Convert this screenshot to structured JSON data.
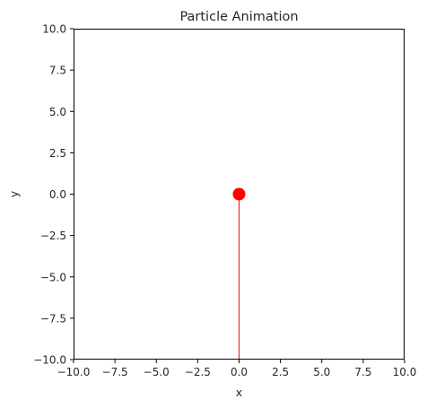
{
  "chart_data": {
    "type": "scatter",
    "title": "Particle Animation",
    "xlabel": "x",
    "ylabel": "y",
    "xlim": [
      -10,
      10
    ],
    "ylim": [
      -10,
      10
    ],
    "grid": false,
    "xticks": [
      -10.0,
      -7.5,
      -5.0,
      -2.5,
      0.0,
      2.5,
      5.0,
      7.5,
      10.0
    ],
    "yticks": [
      -10.0,
      -7.5,
      -5.0,
      -2.5,
      0.0,
      2.5,
      5.0,
      7.5,
      10.0
    ],
    "xtick_labels": [
      "−10.0",
      "−7.5",
      "−5.0",
      "−2.5",
      "0.0",
      "2.5",
      "5.0",
      "7.5",
      "10.0"
    ],
    "ytick_labels": [
      "−10.0",
      "−7.5",
      "−5.0",
      "−2.5",
      "0.0",
      "2.5",
      "5.0",
      "7.5",
      "10.0"
    ],
    "particle": {
      "x": 0.0,
      "y": 0.0,
      "color": "#ff0000"
    },
    "trail": {
      "color": "#ff0000",
      "points": [
        [
          0.0,
          -10.0
        ],
        [
          0.0,
          0.0
        ]
      ]
    }
  }
}
